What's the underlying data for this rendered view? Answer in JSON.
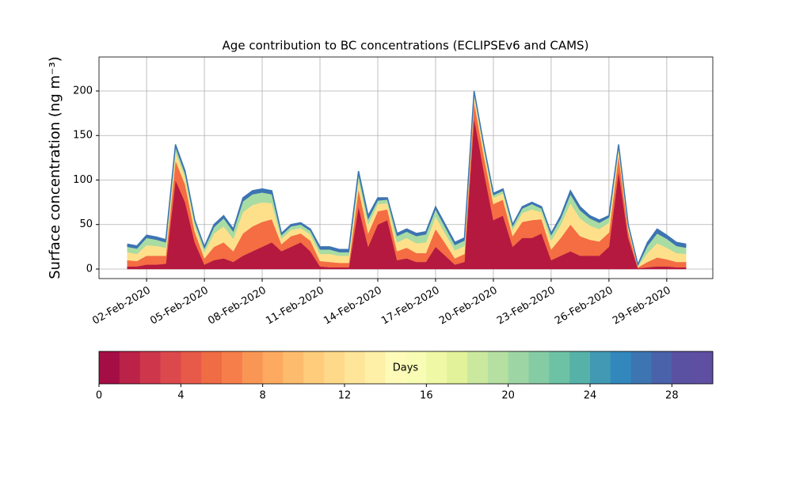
{
  "chart_data": {
    "type": "stacked_area",
    "title": "Age contribution to BC concentrations (ECLIPSEv6 and CAMS)",
    "y_label": "Surface concentration (ng m⁻³)",
    "x": [
      1,
      1.5,
      2,
      2.5,
      3,
      3.5,
      4,
      4.5,
      5,
      5.5,
      6,
      6.5,
      7,
      7.5,
      8,
      8.5,
      9,
      9.5,
      10,
      10.5,
      11,
      11.5,
      12,
      12.5,
      13,
      13.5,
      14,
      14.5,
      15,
      15.5,
      16,
      16.5,
      17,
      17.5,
      18,
      18.5,
      19,
      19.5,
      20,
      20.5,
      21,
      21.5,
      22,
      22.5,
      23,
      23.5,
      24,
      24.5,
      25,
      25.5,
      26,
      26.5,
      27,
      27.5,
      28,
      28.5,
      29,
      29.5,
      30
    ],
    "series": [
      {
        "color": "#b5193f",
        "values": [
          3,
          3,
          5,
          5,
          6,
          100,
          75,
          30,
          5,
          10,
          12,
          8,
          15,
          20,
          25,
          30,
          20,
          25,
          30,
          20,
          3,
          2,
          2,
          2,
          70,
          25,
          50,
          55,
          10,
          12,
          8,
          8,
          25,
          15,
          5,
          8,
          170,
          110,
          55,
          60,
          25,
          35,
          35,
          40,
          10,
          15,
          20,
          15,
          15,
          15,
          25,
          110,
          35,
          1,
          2,
          3,
          3,
          2,
          2
        ]
      },
      {
        "color": "#f46d43",
        "values": [
          7,
          6,
          10,
          10,
          9,
          22,
          20,
          12,
          7,
          15,
          18,
          12,
          25,
          28,
          28,
          26,
          8,
          12,
          10,
          12,
          6,
          6,
          5,
          5,
          20,
          15,
          15,
          12,
          10,
          12,
          10,
          10,
          20,
          14,
          7,
          9,
          18,
          18,
          18,
          18,
          12,
          18,
          20,
          16,
          12,
          20,
          30,
          22,
          18,
          16,
          16,
          18,
          8,
          1,
          6,
          10,
          8,
          6,
          6
        ]
      },
      {
        "color": "#fee08b",
        "values": [
          9,
          8,
          12,
          11,
          9,
          10,
          8,
          7,
          7,
          15,
          18,
          14,
          24,
          24,
          22,
          18,
          6,
          7,
          6,
          7,
          8,
          9,
          8,
          8,
          10,
          10,
          8,
          7,
          10,
          11,
          11,
          12,
          14,
          11,
          9,
          9,
          7,
          7,
          7,
          7,
          7,
          10,
          12,
          8,
          10,
          15,
          24,
          20,
          16,
          14,
          11,
          7,
          4,
          1,
          10,
          16,
          13,
          10,
          9
        ]
      },
      {
        "color": "#a8dca3",
        "values": [
          6,
          6,
          8,
          7,
          6,
          5,
          4,
          4,
          4,
          7,
          9,
          8,
          12,
          12,
          11,
          10,
          4,
          4,
          4,
          4,
          5,
          5,
          4,
          4,
          6,
          6,
          4,
          4,
          7,
          7,
          8,
          9,
          8,
          7,
          6,
          6,
          3,
          3,
          3,
          3,
          4,
          5,
          6,
          4,
          6,
          7,
          10,
          9,
          8,
          7,
          6,
          3,
          2,
          1,
          8,
          11,
          10,
          8,
          7
        ]
      },
      {
        "color": "#3d74b2",
        "values": [
          3,
          3,
          3,
          3,
          3,
          3,
          3,
          2,
          2,
          3,
          3,
          3,
          4,
          4,
          4,
          4,
          2,
          2,
          2,
          2,
          3,
          3,
          3,
          3,
          4,
          4,
          3,
          2,
          3,
          3,
          3,
          3,
          3,
          3,
          3,
          3,
          2,
          2,
          2,
          2,
          2,
          2,
          2,
          2,
          2,
          3,
          4,
          4,
          3,
          3,
          2,
          2,
          1,
          1,
          4,
          5,
          4,
          4,
          4
        ]
      }
    ],
    "xlim": [
      -0.47,
      31.39
    ],
    "xticks": [
      {
        "value": 2,
        "label": "02-Feb-2020"
      },
      {
        "value": 5,
        "label": "05-Feb-2020"
      },
      {
        "value": 8,
        "label": "08-Feb-2020"
      },
      {
        "value": 11,
        "label": "11-Feb-2020"
      },
      {
        "value": 14,
        "label": "14-Feb-2020"
      },
      {
        "value": 17,
        "label": "17-Feb-2020"
      },
      {
        "value": 20,
        "label": "20-Feb-2020"
      },
      {
        "value": 23,
        "label": "23-Feb-2020"
      },
      {
        "value": 26,
        "label": "26-Feb-2020"
      },
      {
        "value": 29,
        "label": "29-Feb-2020"
      }
    ],
    "ylim": [
      -10.7,
      238.2
    ],
    "yticks": [
      0,
      50,
      100,
      150,
      200
    ],
    "grid": true,
    "colorbar": {
      "label": "Days",
      "xlim": [
        0,
        30
      ],
      "ticks": [
        0,
        4,
        8,
        12,
        16,
        20,
        24,
        28
      ],
      "colors": [
        "#a50d45",
        "#bb2248",
        "#cd364b",
        "#dc494c",
        "#e75948",
        "#f06c44",
        "#f67e4b",
        "#fa9655",
        "#fdaa60",
        "#fdbc6d",
        "#fecc7b",
        "#fed98a",
        "#fee59a",
        "#fff0a8",
        "#fefbb9",
        "#f8fcb4",
        "#eef8a5",
        "#e1f29a",
        "#cbe99e",
        "#b5e0a2",
        "#9dd6a4",
        "#85cca5",
        "#6dc2a5",
        "#56b2a9",
        "#4299b3",
        "#3288bd",
        "#3d74b2",
        "#4a62aa",
        "#5a51a3",
        "#5e4fa2"
      ]
    }
  }
}
